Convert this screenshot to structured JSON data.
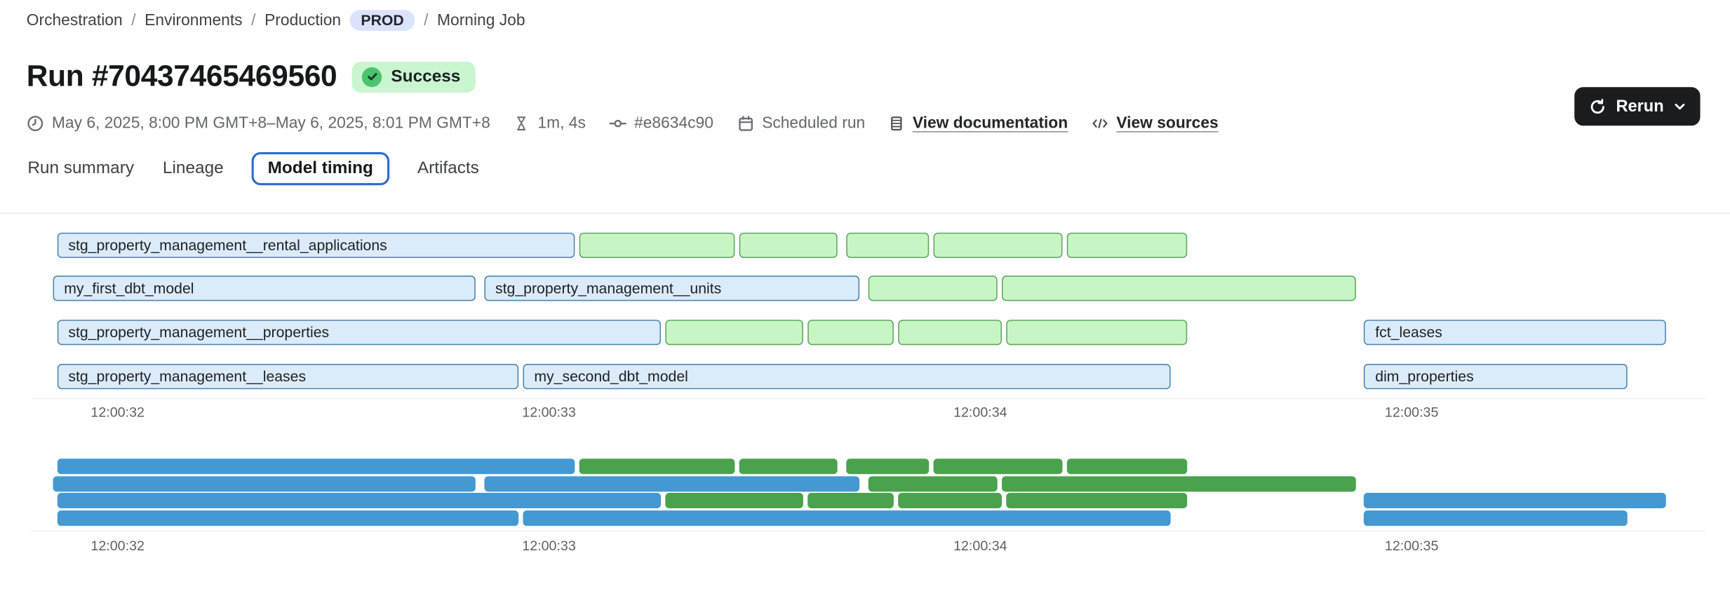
{
  "breadcrumb": {
    "items": [
      "Orchestration",
      "Environments",
      "Production",
      "Morning Job"
    ],
    "separator": "/",
    "env_badge": "PROD"
  },
  "header": {
    "title": "Run #70437465469560",
    "status": "Success"
  },
  "meta": {
    "time_range": "May 6, 2025, 8:00 PM GMT+8–May 6, 2025, 8:01 PM GMT+8",
    "duration": "1m, 4s",
    "commit": "#e8634c90",
    "trigger": "Scheduled run",
    "doc_link": "View documentation",
    "sources_link": "View sources"
  },
  "actions": {
    "rerun_label": "Rerun"
  },
  "tabs": [
    {
      "label": "Run summary",
      "active": false
    },
    {
      "label": "Lineage",
      "active": false
    },
    {
      "label": "Model timing",
      "active": true
    },
    {
      "label": "Artifacts",
      "active": false
    }
  ],
  "colors": {
    "bar_blue_fill": "#dcebfa",
    "bar_blue_border": "#4b86b3",
    "bar_green_fill": "#c7f6c4",
    "bar_green_border": "#61a763",
    "minimap_blue": "#4599d3",
    "minimap_green": "#4aa34c",
    "status_badge_bg": "#c9f6cf",
    "status_circle": "#4cc46e",
    "env_badge_bg": "#dbe3fc",
    "active_tab_border": "#2f6bd3",
    "rerun_bg": "#1a1d20"
  },
  "chart_data": {
    "type": "gantt",
    "title": "Model timing",
    "time_axis": {
      "t_min": 31.85,
      "t_max": 35.6,
      "ticks": [
        {
          "t": 32,
          "label": "12:00:32"
        },
        {
          "t": 33,
          "label": "12:00:33"
        },
        {
          "t": 34,
          "label": "12:00:34"
        },
        {
          "t": 35,
          "label": "12:00:35"
        }
      ]
    },
    "rows": [
      {
        "bars": [
          {
            "label": "stg_property_management__rental_applications",
            "kind": "blue",
            "start": 31.86,
            "end": 33.06
          },
          {
            "label": "",
            "kind": "green",
            "start": 33.07,
            "end": 33.43
          },
          {
            "label": "",
            "kind": "green",
            "start": 33.44,
            "end": 33.67
          },
          {
            "label": "",
            "kind": "green",
            "start": 33.69,
            "end": 33.88
          },
          {
            "label": "",
            "kind": "green",
            "start": 33.89,
            "end": 34.19
          },
          {
            "label": "",
            "kind": "green",
            "start": 34.2,
            "end": 34.48
          }
        ]
      },
      {
        "bars": [
          {
            "label": "my_first_dbt_model",
            "kind": "blue",
            "start": 31.85,
            "end": 32.83
          },
          {
            "label": "stg_property_management__units",
            "kind": "blue",
            "start": 32.85,
            "end": 33.72
          },
          {
            "label": "",
            "kind": "green",
            "start": 33.74,
            "end": 34.04
          },
          {
            "label": "",
            "kind": "green",
            "start": 34.05,
            "end": 34.87
          }
        ]
      },
      {
        "bars": [
          {
            "label": "stg_property_management__properties",
            "kind": "blue",
            "start": 31.86,
            "end": 33.26
          },
          {
            "label": "",
            "kind": "green",
            "start": 33.27,
            "end": 33.59
          },
          {
            "label": "",
            "kind": "green",
            "start": 33.6,
            "end": 33.8
          },
          {
            "label": "",
            "kind": "green",
            "start": 33.81,
            "end": 34.05
          },
          {
            "label": "",
            "kind": "green",
            "start": 34.06,
            "end": 34.48
          },
          {
            "label": "fct_leases",
            "kind": "blue",
            "start": 34.89,
            "end": 35.59
          }
        ]
      },
      {
        "bars": [
          {
            "label": "stg_property_management__leases",
            "kind": "blue",
            "start": 31.86,
            "end": 32.93
          },
          {
            "label": "my_second_dbt_model",
            "kind": "blue",
            "start": 32.94,
            "end": 34.44
          },
          {
            "label": "dim_properties",
            "kind": "blue",
            "start": 34.89,
            "end": 35.5
          }
        ]
      }
    ]
  }
}
